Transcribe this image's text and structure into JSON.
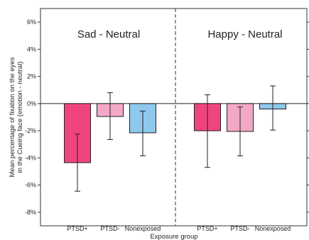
{
  "chart_data": {
    "type": "bar",
    "ylabel_lines": [
      "Mean percentage of fixation on the eyes",
      "in the Cueing face (emotion - neutral)"
    ],
    "xlabel": "Exposure group",
    "ylim": [
      -9,
      7
    ],
    "y_ticks": [
      6,
      4,
      2,
      0,
      -2,
      -4,
      -6,
      -8
    ],
    "y_tick_labels": [
      "6%",
      "4%",
      "2%",
      "0%",
      "-2%",
      "-4%",
      "-6%",
      "-8%"
    ],
    "panels": [
      {
        "title": "Sad - Neutral",
        "categories": [
          "PTSD+",
          "PTSD-",
          "Nonexposed"
        ],
        "values": [
          -4.35,
          -0.95,
          -2.15
        ],
        "error_low": [
          -6.45,
          -2.65,
          -3.85
        ],
        "error_high": [
          -2.25,
          0.8,
          -0.55
        ]
      },
      {
        "title": "Happy - Neutral",
        "categories": [
          "PTSD+",
          "PTSD-",
          "Nonexposed"
        ],
        "values": [
          -2.0,
          -2.05,
          -0.4
        ],
        "error_low": [
          -4.7,
          -3.85,
          -1.95
        ],
        "error_high": [
          0.65,
          -0.25,
          1.3
        ]
      }
    ],
    "bar_colors": [
      "#f0447f",
      "#f4a8c8",
      "#8ec8ec"
    ],
    "bar_edge": "#222222",
    "grid": false
  }
}
